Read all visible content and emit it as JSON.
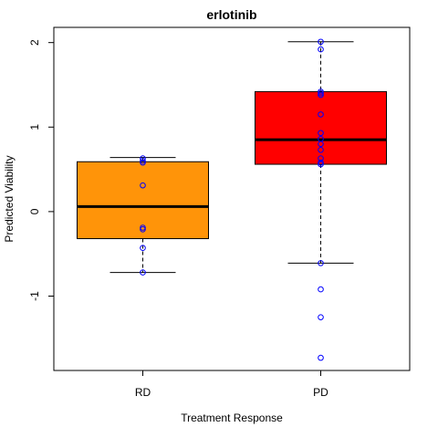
{
  "chart_data": {
    "type": "boxplot",
    "title": "erlotinib",
    "xlabel": "Treatment Response",
    "ylabel": "Predicted Viability",
    "ylim": [
      -1.88,
      2.18
    ],
    "yticks": [
      -1,
      0,
      1,
      2
    ],
    "ytick_labels": [
      "-1",
      "0",
      "1",
      "2"
    ],
    "grid": false,
    "categories": [
      "RD",
      "PD"
    ],
    "boxes": [
      {
        "name": "RD",
        "color": "#FF9409",
        "whisker_low": -0.72,
        "q1": -0.32,
        "median": 0.06,
        "q3": 0.59,
        "whisker_high": 0.64,
        "points": [
          0.63,
          0.6,
          0.58,
          0.31,
          -0.19,
          -0.21,
          -0.43,
          -0.72
        ]
      },
      {
        "name": "PD",
        "color": "#FF0000",
        "whisker_low": -0.61,
        "q1": 0.56,
        "median": 0.85,
        "q3": 1.42,
        "whisker_high": 2.01,
        "points": [
          2.01,
          1.92,
          1.42,
          1.4,
          1.38,
          1.15,
          0.93,
          0.86,
          0.8,
          0.73,
          0.63,
          0.58,
          0.56,
          -0.61,
          -0.92,
          -1.25,
          -1.73
        ]
      }
    ],
    "point_color": "#0000FF"
  }
}
